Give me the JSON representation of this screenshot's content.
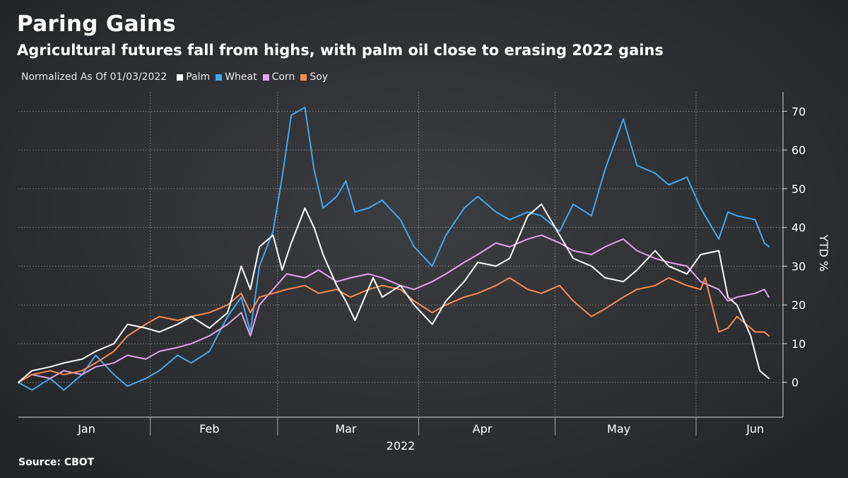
{
  "header": {
    "title": "Paring Gains",
    "subtitle": "Agricultural futures fall from highs, with palm oil close to erasing 2022 gains"
  },
  "legend": {
    "note": "Normalized As Of 01/03/2022",
    "items": [
      {
        "label": "Palm",
        "color": "#ffffff"
      },
      {
        "label": "Wheat",
        "color": "#3fa9f5"
      },
      {
        "label": "Corn",
        "color": "#e4a3ee"
      },
      {
        "label": "Soy",
        "color": "#ff8a50"
      }
    ]
  },
  "footer": {
    "source": "Source: CBOT"
  },
  "chart_data": {
    "type": "line",
    "ylabel": "YTD %",
    "xlabel": "2022",
    "ylim": [
      -9,
      75
    ],
    "yticks": [
      0,
      10,
      20,
      30,
      40,
      50,
      60,
      70
    ],
    "xlim": [
      "2022-01-03",
      "2022-06-17"
    ],
    "x_ticks": [
      {
        "date": "2022-01-18",
        "label": "Jan"
      },
      {
        "date": "2022-02-14",
        "label": "Feb"
      },
      {
        "date": "2022-03-16",
        "label": "Mar"
      },
      {
        "date": "2022-04-15",
        "label": "Apr"
      },
      {
        "date": "2022-05-15",
        "label": "May"
      },
      {
        "date": "2022-06-14",
        "label": "Jun"
      }
    ],
    "month_boundaries": [
      "2022-02-01",
      "2022-03-01",
      "2022-04-01",
      "2022-05-01",
      "2022-06-01"
    ],
    "grid": true,
    "series": [
      {
        "name": "Wheat",
        "color": "#3fa9f5",
        "points": [
          [
            "2022-01-03",
            0
          ],
          [
            "2022-01-06",
            -2
          ],
          [
            "2022-01-10",
            1
          ],
          [
            "2022-01-13",
            -2
          ],
          [
            "2022-01-17",
            2
          ],
          [
            "2022-01-20",
            7
          ],
          [
            "2022-01-24",
            2
          ],
          [
            "2022-01-27",
            -1
          ],
          [
            "2022-01-31",
            1
          ],
          [
            "2022-02-03",
            3
          ],
          [
            "2022-02-07",
            7
          ],
          [
            "2022-02-10",
            5
          ],
          [
            "2022-02-14",
            8
          ],
          [
            "2022-02-18",
            17
          ],
          [
            "2022-02-21",
            22
          ],
          [
            "2022-02-23",
            13
          ],
          [
            "2022-02-25",
            30
          ],
          [
            "2022-02-28",
            39
          ],
          [
            "2022-03-02",
            53
          ],
          [
            "2022-03-04",
            69
          ],
          [
            "2022-03-07",
            71
          ],
          [
            "2022-03-09",
            55
          ],
          [
            "2022-03-11",
            45
          ],
          [
            "2022-03-14",
            48
          ],
          [
            "2022-03-16",
            52
          ],
          [
            "2022-03-18",
            44
          ],
          [
            "2022-03-21",
            45
          ],
          [
            "2022-03-24",
            47
          ],
          [
            "2022-03-28",
            42
          ],
          [
            "2022-03-31",
            35
          ],
          [
            "2022-04-04",
            30
          ],
          [
            "2022-04-07",
            38
          ],
          [
            "2022-04-11",
            45
          ],
          [
            "2022-04-14",
            48
          ],
          [
            "2022-04-18",
            44
          ],
          [
            "2022-04-21",
            42
          ],
          [
            "2022-04-25",
            44
          ],
          [
            "2022-04-28",
            43
          ],
          [
            "2022-05-02",
            39
          ],
          [
            "2022-05-05",
            46
          ],
          [
            "2022-05-09",
            43
          ],
          [
            "2022-05-12",
            55
          ],
          [
            "2022-05-16",
            68
          ],
          [
            "2022-05-19",
            56
          ],
          [
            "2022-05-23",
            54
          ],
          [
            "2022-05-26",
            51
          ],
          [
            "2022-05-30",
            53
          ],
          [
            "2022-06-02",
            45
          ],
          [
            "2022-06-06",
            37
          ],
          [
            "2022-06-08",
            44
          ],
          [
            "2022-06-10",
            43
          ],
          [
            "2022-06-14",
            42
          ],
          [
            "2022-06-16",
            36
          ],
          [
            "2022-06-17",
            35
          ]
        ]
      },
      {
        "name": "Corn",
        "color": "#e4a3ee",
        "points": [
          [
            "2022-01-03",
            0
          ],
          [
            "2022-01-06",
            2
          ],
          [
            "2022-01-10",
            1
          ],
          [
            "2022-01-13",
            3
          ],
          [
            "2022-01-17",
            2
          ],
          [
            "2022-01-20",
            4
          ],
          [
            "2022-01-24",
            5
          ],
          [
            "2022-01-27",
            7
          ],
          [
            "2022-01-31",
            6
          ],
          [
            "2022-02-03",
            8
          ],
          [
            "2022-02-07",
            9
          ],
          [
            "2022-02-10",
            10
          ],
          [
            "2022-02-14",
            12
          ],
          [
            "2022-02-18",
            15
          ],
          [
            "2022-02-21",
            18
          ],
          [
            "2022-02-23",
            12
          ],
          [
            "2022-02-25",
            20
          ],
          [
            "2022-02-28",
            24
          ],
          [
            "2022-03-03",
            28
          ],
          [
            "2022-03-07",
            27
          ],
          [
            "2022-03-10",
            29
          ],
          [
            "2022-03-14",
            26
          ],
          [
            "2022-03-17",
            27
          ],
          [
            "2022-03-21",
            28
          ],
          [
            "2022-03-24",
            27
          ],
          [
            "2022-03-28",
            25
          ],
          [
            "2022-03-31",
            24
          ],
          [
            "2022-04-04",
            26
          ],
          [
            "2022-04-07",
            28
          ],
          [
            "2022-04-11",
            31
          ],
          [
            "2022-04-14",
            33
          ],
          [
            "2022-04-18",
            36
          ],
          [
            "2022-04-21",
            35
          ],
          [
            "2022-04-25",
            37
          ],
          [
            "2022-04-28",
            38
          ],
          [
            "2022-05-02",
            36
          ],
          [
            "2022-05-05",
            34
          ],
          [
            "2022-05-09",
            33
          ],
          [
            "2022-05-12",
            35
          ],
          [
            "2022-05-16",
            37
          ],
          [
            "2022-05-19",
            34
          ],
          [
            "2022-05-23",
            32
          ],
          [
            "2022-05-26",
            31
          ],
          [
            "2022-05-30",
            30
          ],
          [
            "2022-06-02",
            26
          ],
          [
            "2022-06-06",
            24
          ],
          [
            "2022-06-08",
            21
          ],
          [
            "2022-06-10",
            22
          ],
          [
            "2022-06-14",
            23
          ],
          [
            "2022-06-16",
            24
          ],
          [
            "2022-06-17",
            22
          ]
        ]
      },
      {
        "name": "Soy",
        "color": "#ff8a50",
        "points": [
          [
            "2022-01-03",
            0
          ],
          [
            "2022-01-06",
            2
          ],
          [
            "2022-01-10",
            3
          ],
          [
            "2022-01-13",
            2
          ],
          [
            "2022-01-17",
            3
          ],
          [
            "2022-01-20",
            5
          ],
          [
            "2022-01-24",
            8
          ],
          [
            "2022-01-27",
            12
          ],
          [
            "2022-01-31",
            15
          ],
          [
            "2022-02-03",
            17
          ],
          [
            "2022-02-07",
            16
          ],
          [
            "2022-02-10",
            17
          ],
          [
            "2022-02-14",
            18
          ],
          [
            "2022-02-18",
            20
          ],
          [
            "2022-02-21",
            23
          ],
          [
            "2022-02-23",
            18
          ],
          [
            "2022-02-25",
            22
          ],
          [
            "2022-02-28",
            23
          ],
          [
            "2022-03-03",
            24
          ],
          [
            "2022-03-07",
            25
          ],
          [
            "2022-03-10",
            23
          ],
          [
            "2022-03-14",
            24
          ],
          [
            "2022-03-17",
            22
          ],
          [
            "2022-03-21",
            24
          ],
          [
            "2022-03-24",
            25
          ],
          [
            "2022-03-28",
            24
          ],
          [
            "2022-03-31",
            21
          ],
          [
            "2022-04-04",
            18
          ],
          [
            "2022-04-07",
            20
          ],
          [
            "2022-04-11",
            22
          ],
          [
            "2022-04-14",
            23
          ],
          [
            "2022-04-18",
            25
          ],
          [
            "2022-04-21",
            27
          ],
          [
            "2022-04-25",
            24
          ],
          [
            "2022-04-28",
            23
          ],
          [
            "2022-05-02",
            25
          ],
          [
            "2022-05-05",
            21
          ],
          [
            "2022-05-09",
            17
          ],
          [
            "2022-05-12",
            19
          ],
          [
            "2022-05-16",
            22
          ],
          [
            "2022-05-19",
            24
          ],
          [
            "2022-05-23",
            25
          ],
          [
            "2022-05-26",
            27
          ],
          [
            "2022-05-30",
            25
          ],
          [
            "2022-06-02",
            24
          ],
          [
            "2022-06-03",
            27
          ],
          [
            "2022-06-06",
            13
          ],
          [
            "2022-06-08",
            14
          ],
          [
            "2022-06-10",
            17
          ],
          [
            "2022-06-14",
            13
          ],
          [
            "2022-06-16",
            13
          ],
          [
            "2022-06-17",
            12
          ]
        ]
      },
      {
        "name": "Palm",
        "color": "#ffffff",
        "points": [
          [
            "2022-01-03",
            0
          ],
          [
            "2022-01-06",
            3
          ],
          [
            "2022-01-10",
            4
          ],
          [
            "2022-01-13",
            5
          ],
          [
            "2022-01-17",
            6
          ],
          [
            "2022-01-20",
            8
          ],
          [
            "2022-01-24",
            10
          ],
          [
            "2022-01-27",
            15
          ],
          [
            "2022-01-31",
            14
          ],
          [
            "2022-02-03",
            13
          ],
          [
            "2022-02-07",
            15
          ],
          [
            "2022-02-10",
            17
          ],
          [
            "2022-02-14",
            14
          ],
          [
            "2022-02-18",
            18
          ],
          [
            "2022-02-21",
            30
          ],
          [
            "2022-02-23",
            24
          ],
          [
            "2022-02-25",
            35
          ],
          [
            "2022-02-28",
            38
          ],
          [
            "2022-03-02",
            29
          ],
          [
            "2022-03-04",
            36
          ],
          [
            "2022-03-07",
            45
          ],
          [
            "2022-03-09",
            40
          ],
          [
            "2022-03-11",
            33
          ],
          [
            "2022-03-14",
            25
          ],
          [
            "2022-03-16",
            21
          ],
          [
            "2022-03-18",
            16
          ],
          [
            "2022-03-22",
            27
          ],
          [
            "2022-03-24",
            22
          ],
          [
            "2022-03-28",
            25
          ],
          [
            "2022-03-31",
            20
          ],
          [
            "2022-04-04",
            15
          ],
          [
            "2022-04-07",
            21
          ],
          [
            "2022-04-11",
            26
          ],
          [
            "2022-04-14",
            31
          ],
          [
            "2022-04-18",
            30
          ],
          [
            "2022-04-21",
            32
          ],
          [
            "2022-04-25",
            43
          ],
          [
            "2022-04-28",
            46
          ],
          [
            "2022-05-02",
            38
          ],
          [
            "2022-05-05",
            32
          ],
          [
            "2022-05-09",
            30
          ],
          [
            "2022-05-12",
            27
          ],
          [
            "2022-05-16",
            26
          ],
          [
            "2022-05-19",
            29
          ],
          [
            "2022-05-23",
            34
          ],
          [
            "2022-05-26",
            30
          ],
          [
            "2022-05-30",
            28
          ],
          [
            "2022-06-02",
            33
          ],
          [
            "2022-06-06",
            34
          ],
          [
            "2022-06-08",
            22
          ],
          [
            "2022-06-10",
            20
          ],
          [
            "2022-06-13",
            12
          ],
          [
            "2022-06-15",
            3
          ],
          [
            "2022-06-17",
            1
          ]
        ]
      }
    ]
  }
}
